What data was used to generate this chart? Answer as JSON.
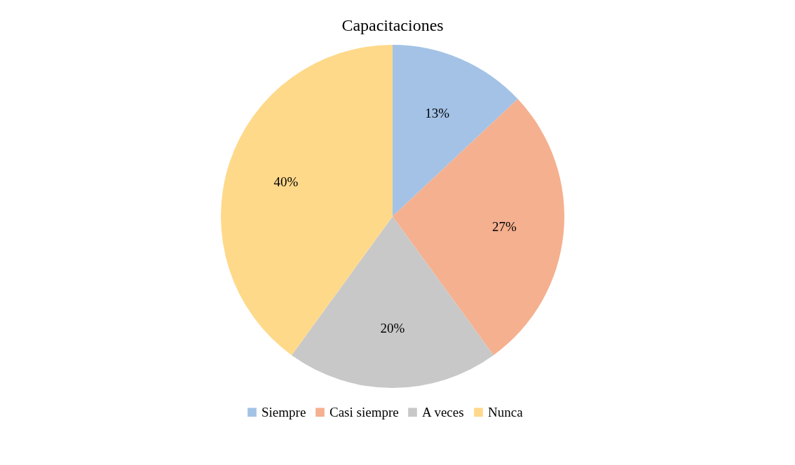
{
  "chart_data": {
    "type": "pie",
    "title": "Capacitaciones",
    "categories": [
      "Siempre",
      "Casi siempre",
      "A veces",
      "Nunca"
    ],
    "values": [
      13,
      27,
      20,
      40
    ],
    "colors": [
      "#a3c2e6",
      "#f5b08f",
      "#c8c8c8",
      "#fed98a"
    ],
    "value_labels": [
      "13%",
      "27%",
      "20%",
      "40%"
    ],
    "legend": "bottom"
  }
}
